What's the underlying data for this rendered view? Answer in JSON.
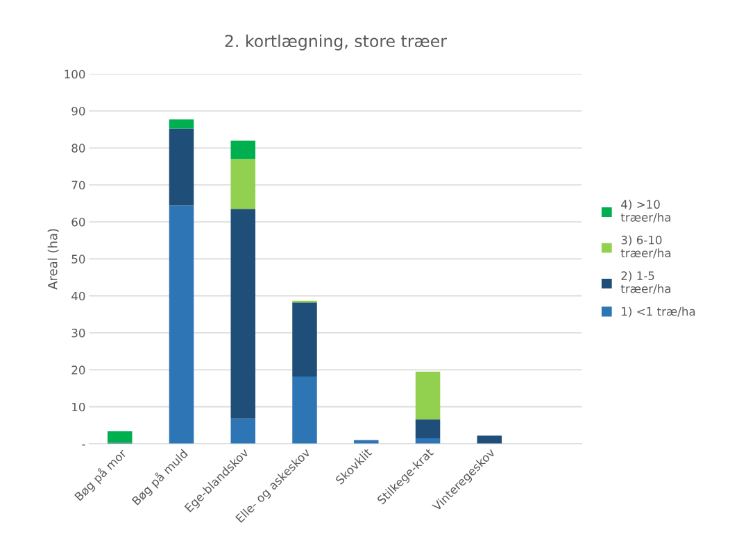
{
  "chart_data": {
    "type": "bar",
    "stacked": true,
    "title": "2. kortlægning, store træer",
    "ylabel": "Areal (ha)",
    "categories": [
      "Bøg på mor",
      "Bøg på muld",
      "Ege-blandskov",
      "Elle- og askeskov",
      "Skovklit",
      "Stilkege-krat",
      "Vinteregeskov",
      null
    ],
    "series": [
      {
        "name": "1) <1 træ/ha",
        "color": "#2e75b6",
        "values": [
          null,
          64.4,
          6.8,
          18.2,
          1.0,
          1.5,
          null,
          null
        ]
      },
      {
        "name": "2) 1-5 træer/ha",
        "color": "#1f4e79",
        "values": [
          0.3,
          20.8,
          56.7,
          20.0,
          null,
          5.1,
          2.2,
          null
        ]
      },
      {
        "name": "3) 6-10 træer/ha",
        "color": "#92d050",
        "values": [
          null,
          null,
          13.5,
          0.5,
          null,
          12.9,
          null,
          null
        ]
      },
      {
        "name": "4) >10 træer/ha",
        "color": "#00b050",
        "values": [
          3.1,
          2.5,
          5.0,
          null,
          null,
          null,
          null,
          null
        ]
      }
    ],
    "ylim": [
      0,
      100
    ],
    "yticks": [
      {
        "value": 0,
        "label": "-"
      },
      10,
      20,
      30,
      40,
      50,
      60,
      70,
      80,
      90,
      100
    ],
    "grid": "y",
    "legend": "right"
  }
}
